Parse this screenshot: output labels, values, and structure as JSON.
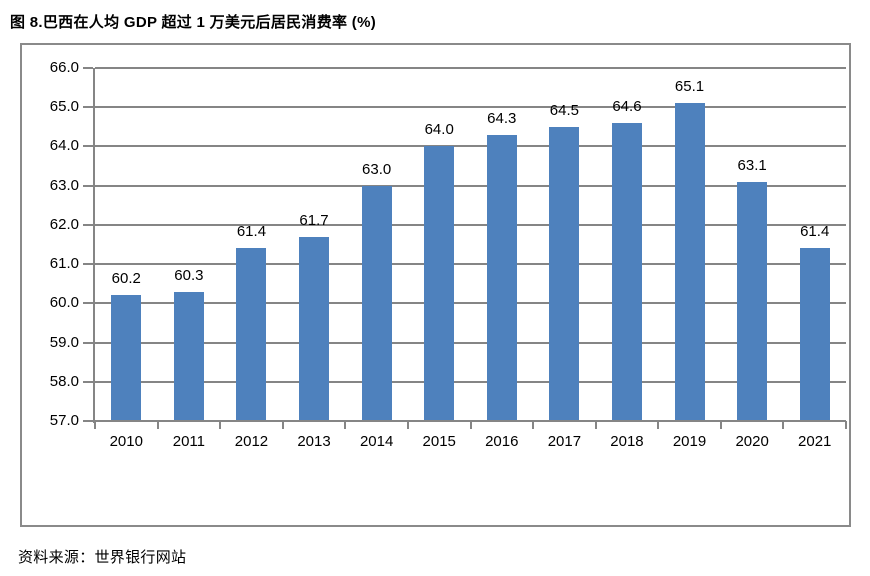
{
  "title": "图 8.巴西在人均 GDP 超过 1 万美元后居民消费率 (%)",
  "source": "资料来源：世界银行网站",
  "chart_data": {
    "type": "bar",
    "title": "图 8.巴西在人均 GDP 超过 1 万美元后居民消费率 (%)",
    "categories": [
      "2010",
      "2011",
      "2012",
      "2013",
      "2014",
      "2015",
      "2016",
      "2017",
      "2018",
      "2019",
      "2020",
      "2021"
    ],
    "values": [
      60.2,
      60.3,
      61.4,
      61.7,
      63.0,
      64.0,
      64.3,
      64.5,
      64.6,
      65.1,
      63.1,
      61.4
    ],
    "value_labels": [
      "60.2",
      "60.3",
      "61.4",
      "61.7",
      "63.0",
      "64.0",
      "64.3",
      "64.5",
      "64.6",
      "65.1",
      "63.1",
      "61.4"
    ],
    "xlabel": "",
    "ylabel": "",
    "ylim": [
      57.0,
      66.0
    ],
    "ytick_step": 1.0,
    "ytick_labels": [
      "57.0",
      "58.0",
      "59.0",
      "60.0",
      "61.0",
      "62.0",
      "63.0",
      "64.0",
      "65.0",
      "66.0"
    ],
    "grid": true,
    "legend": "none",
    "bar_color": "#4E81BD",
    "axis_color": "#858585",
    "text_color": "#000000"
  }
}
